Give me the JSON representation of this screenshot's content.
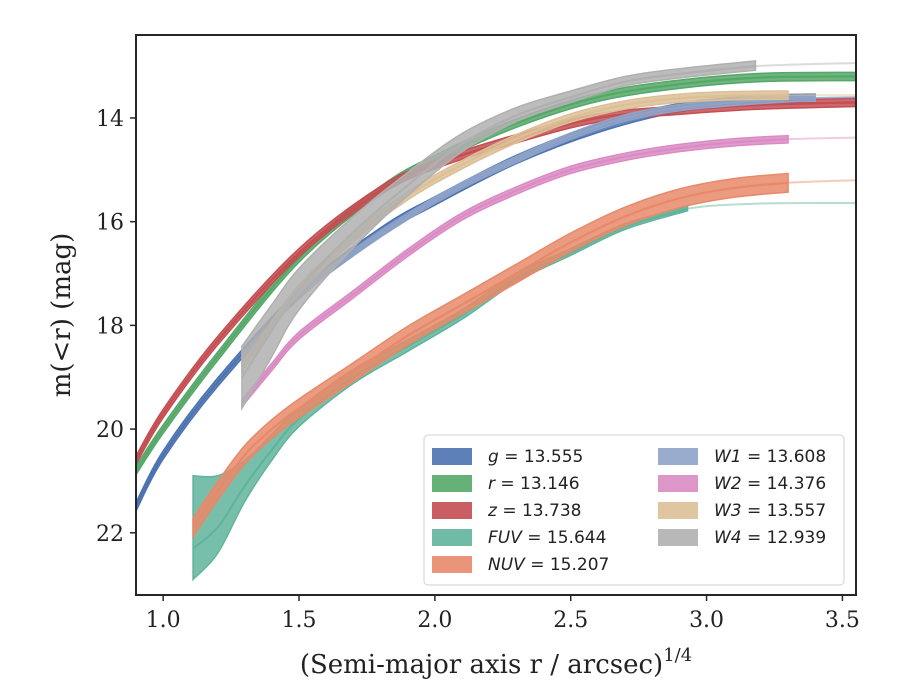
{
  "chart_data": {
    "type": "line",
    "xlabel": "(Semi-major axis r / arcsec)",
    "xlabel_sup": "1/4",
    "ylabel": "m(<r) (mag)",
    "xlim": [
      0.9,
      3.55
    ],
    "ylim": [
      23.2,
      12.4
    ],
    "y_inverted": true,
    "grid": false,
    "legend_position": "lower-right",
    "xticks": [
      1.0,
      1.5,
      2.0,
      2.5,
      3.0,
      3.5
    ],
    "yticks": [
      14,
      16,
      18,
      20,
      22
    ],
    "series": [
      {
        "name": "g",
        "value": "13.555",
        "color": "#4c72b0",
        "x": [
          0.9,
          1.0,
          1.2,
          1.5,
          1.8,
          2.0,
          2.3,
          2.6,
          2.9,
          3.2,
          3.55
        ],
        "y": [
          21.5,
          20.5,
          19.1,
          17.4,
          16.2,
          15.6,
          14.8,
          14.2,
          13.8,
          13.65,
          13.6
        ],
        "band": 0.08,
        "x_end": 3.4
      },
      {
        "name": "r",
        "value": "13.146",
        "color": "#55a868",
        "x": [
          0.9,
          1.0,
          1.2,
          1.5,
          1.8,
          2.0,
          2.3,
          2.6,
          2.9,
          3.2,
          3.55
        ],
        "y": [
          20.8,
          20.0,
          18.6,
          16.7,
          15.4,
          14.8,
          14.1,
          13.6,
          13.35,
          13.22,
          13.2
        ],
        "band": 0.08,
        "x_end": 3.55
      },
      {
        "name": "z",
        "value": "13.738",
        "color": "#c44e52",
        "x": [
          0.9,
          1.0,
          1.2,
          1.5,
          1.8,
          2.0,
          2.3,
          2.6,
          2.9,
          3.2,
          3.55
        ],
        "y": [
          20.6,
          19.7,
          18.3,
          16.6,
          15.4,
          14.9,
          14.4,
          14.0,
          13.85,
          13.75,
          13.7
        ],
        "band": 0.08,
        "x_end": 3.55
      },
      {
        "name": "FUV",
        "value": "15.644",
        "color": "#60b49c",
        "x": [
          1.11,
          1.2,
          1.3,
          1.4,
          1.5,
          1.7,
          1.9,
          2.1,
          2.3,
          2.5,
          2.7,
          2.93,
          3.2,
          3.55
        ],
        "y": [
          22.3,
          21.9,
          21.1,
          20.4,
          19.8,
          19.0,
          18.4,
          17.8,
          17.1,
          16.6,
          16.1,
          15.75,
          15.65,
          15.64
        ],
        "band_upper": [
          1.4,
          1.0,
          0.5,
          0.3,
          0.2,
          0.15,
          0.12,
          0.1,
          0.1,
          0.08,
          0.06,
          0.05,
          0,
          0
        ],
        "band_lower": [
          0.6,
          0.5,
          0.3,
          0.2,
          0.15,
          0.12,
          0.1,
          0.08,
          0.06,
          0.05,
          0.05,
          0.04,
          0,
          0
        ],
        "x_end": 2.93
      },
      {
        "name": "NUV",
        "value": "15.207",
        "color": "#e8896a",
        "x": [
          1.11,
          1.2,
          1.3,
          1.4,
          1.5,
          1.7,
          1.9,
          2.1,
          2.3,
          2.5,
          2.7,
          2.9,
          3.1,
          3.3,
          3.55
        ],
        "y": [
          21.9,
          21.2,
          20.5,
          20.0,
          19.6,
          18.9,
          18.2,
          17.6,
          17.0,
          16.4,
          15.9,
          15.55,
          15.35,
          15.25,
          15.2
        ],
        "band": 0.18,
        "x_end": 3.3
      },
      {
        "name": "W1",
        "value": "13.608",
        "color": "#8fa3c8",
        "x": [
          1.29,
          1.4,
          1.5,
          1.7,
          1.9,
          2.1,
          2.3,
          2.5,
          2.7,
          2.9,
          3.1,
          3.3,
          3.55
        ],
        "y": [
          18.6,
          18.0,
          17.4,
          16.6,
          15.9,
          15.3,
          14.8,
          14.35,
          14.0,
          13.8,
          13.7,
          13.63,
          13.6
        ],
        "band": 0.06,
        "x_end": 3.4
      },
      {
        "name": "W2",
        "value": "14.376",
        "color": "#da8bc3",
        "x": [
          1.29,
          1.4,
          1.5,
          1.7,
          1.9,
          2.1,
          2.3,
          2.5,
          2.7,
          2.9,
          3.1,
          3.3,
          3.55
        ],
        "y": [
          19.5,
          18.8,
          18.2,
          17.4,
          16.6,
          15.9,
          15.4,
          15.0,
          14.75,
          14.58,
          14.47,
          14.41,
          14.38
        ],
        "band": 0.07,
        "x_end": 3.3
      },
      {
        "name": "W3",
        "value": "13.557",
        "color": "#dcbf96",
        "x": [
          1.29,
          1.4,
          1.5,
          1.7,
          1.9,
          2.1,
          2.3,
          2.5,
          2.7,
          2.9,
          3.1,
          3.3,
          3.55
        ],
        "y": [
          18.8,
          18.0,
          17.3,
          16.3,
          15.5,
          14.9,
          14.4,
          14.0,
          13.75,
          13.62,
          13.57,
          13.56,
          13.56
        ],
        "band": 0.08,
        "x_end": 3.3
      },
      {
        "name": "W4",
        "value": "12.939",
        "color": "#b0b0b0",
        "x": [
          1.29,
          1.4,
          1.5,
          1.7,
          1.9,
          2.1,
          2.3,
          2.5,
          2.7,
          2.9,
          3.18,
          3.55
        ],
        "y": [
          19.0,
          18.1,
          17.3,
          16.2,
          15.3,
          14.5,
          13.95,
          13.6,
          13.3,
          13.15,
          13.0,
          12.94
        ],
        "band_upper": [
          0.6,
          0.5,
          0.4,
          0.3,
          0.25,
          0.2,
          0.15,
          0.12,
          0.1,
          0.1,
          0.1,
          0
        ],
        "band_lower": [
          0.6,
          0.5,
          0.4,
          0.3,
          0.2,
          0.15,
          0.12,
          0.1,
          0.08,
          0.08,
          0.08,
          0
        ],
        "x_end": 3.18
      }
    ]
  }
}
